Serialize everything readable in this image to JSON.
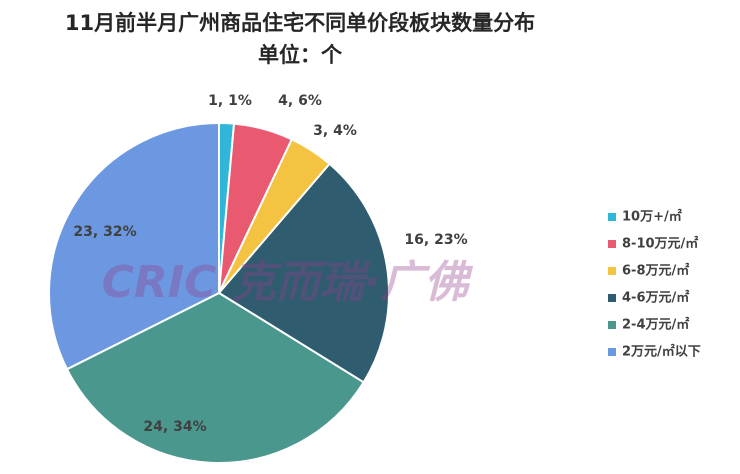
{
  "chart_data": {
    "type": "pie",
    "title": "11月前半月广州商品住宅不同单价段板块数量分布",
    "subtitle": "单位：个",
    "watermark": "CRIC 克而瑞·广佛",
    "categories": [
      "10万+/㎡",
      "8-10万元/㎡",
      "6-8万元/㎡",
      "4-6万元/㎡",
      "2-4万元/㎡",
      "2万元/㎡以下"
    ],
    "values": [
      1,
      4,
      3,
      16,
      24,
      23
    ],
    "value_labels": [
      "1, 1%",
      "4, 6%",
      "3, 4%",
      "16, 23%",
      "24, 34%",
      "23, 32%"
    ],
    "colors": [
      "#2fb6d9",
      "#e95a71",
      "#f5c342",
      "#2f5c6f",
      "#4a978d",
      "#6b98e1"
    ],
    "legend": "right"
  }
}
